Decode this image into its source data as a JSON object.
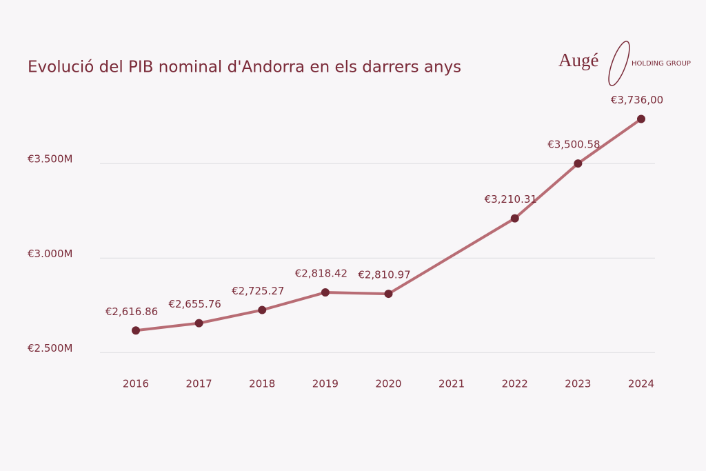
{
  "chart_data": {
    "type": "line",
    "title": "Evolució del PIB nominal d'Andorra en els darrers anys",
    "logo": "Augé",
    "logo_subtitle": "HOLDING GROUP",
    "x": [
      2016,
      2017,
      2018,
      2019,
      2020,
      2022,
      2023,
      2024
    ],
    "xlim": [
      2016,
      2024
    ],
    "xticks": [
      2016,
      2017,
      2018,
      2019,
      2020,
      2021,
      2022,
      2023,
      2024
    ],
    "series": [
      {
        "name": "PIB nominal",
        "color": "#b86c74",
        "marker_color": "#6e2733",
        "values": [
          2616.86,
          2655.76,
          2725.27,
          2818.42,
          2810.97,
          3210.31,
          3500.58,
          3736.0
        ],
        "value_labels": [
          "€2,616.86",
          "€2,655.76",
          "€2,725.27",
          "€2,818.42",
          "€2,810.97",
          "€3,210.31",
          "€3,500.58",
          "€3,736,00"
        ]
      }
    ],
    "ylim": [
      2450,
      3800
    ],
    "yticks": [
      {
        "value": 2500,
        "label": "€2.500M"
      },
      {
        "value": 3000,
        "label": "€3.000M"
      },
      {
        "value": 3500,
        "label": "€3.500M"
      }
    ],
    "grid": true
  }
}
